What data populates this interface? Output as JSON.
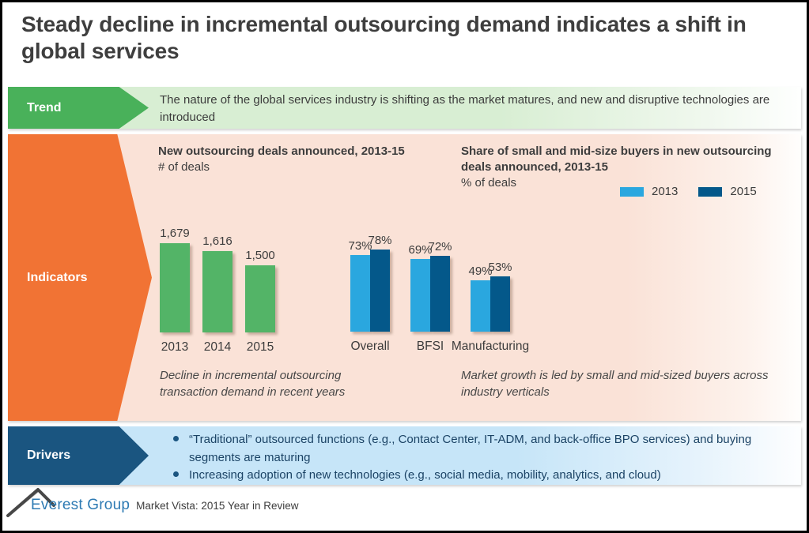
{
  "slide": {
    "title": "Steady decline in incremental outsourcing demand indicates a shift in global services"
  },
  "trend": {
    "label": "Trend",
    "text": "The nature of the global services industry is shifting as the market matures, and new and disruptive technologies are introduced"
  },
  "indicators": {
    "label": "Indicators"
  },
  "drivers": {
    "label": "Drivers",
    "bullets": [
      "“Traditional” outsourced functions (e.g., Contact Center, IT-ADM, and back-office BPO services) and buying segments are maturing",
      "Increasing adoption of new technologies (e.g., social media, mobility, analytics, and cloud)"
    ]
  },
  "footer": {
    "brand": "Everest Group",
    "product": "Market Vista: 2015 Year in Review"
  },
  "colors": {
    "trend_chevron": "#49b15a",
    "indicators_chevron": "#f17334",
    "drivers_chevron": "#1a5580",
    "trend_bg": "#d8eed3",
    "indicators_bg": "#fae2d7",
    "drivers_bg": "#c6e5f8",
    "title_text": "#3e3e3e",
    "brand_blue": "#2d7ab3"
  },
  "chart_data": [
    {
      "type": "bar",
      "title": "New outsourcing deals announced, 2013-15",
      "unit_label": "# of deals",
      "categories": [
        "2013",
        "2014",
        "2015"
      ],
      "values": [
        1679,
        1616,
        1500
      ],
      "value_labels": [
        "1,679",
        "1,616",
        "1,500"
      ],
      "bar_color": "#53b467",
      "ylim": [
        950,
        1750
      ],
      "grid": false,
      "caption": "Decline in incremental outsourcing transaction demand in recent years"
    },
    {
      "type": "grouped_bar",
      "title": "Share of small and mid-size buyers in new outsourcing deals announced, 2013-15",
      "unit_label": "% of deals",
      "categories": [
        "Overall",
        "BFSI",
        "Manufacturing"
      ],
      "series": [
        {
          "name": "2013",
          "color": "#2aa7df",
          "values": [
            73,
            69,
            49
          ]
        },
        {
          "name": "2015",
          "color": "#04588a",
          "values": [
            78,
            72,
            53
          ]
        }
      ],
      "value_suffix": "%",
      "ylim": [
        0,
        100
      ],
      "grid": false,
      "legend_position": "top-right",
      "caption": "Market growth is led by small and mid-sized buyers across industry verticals"
    }
  ]
}
